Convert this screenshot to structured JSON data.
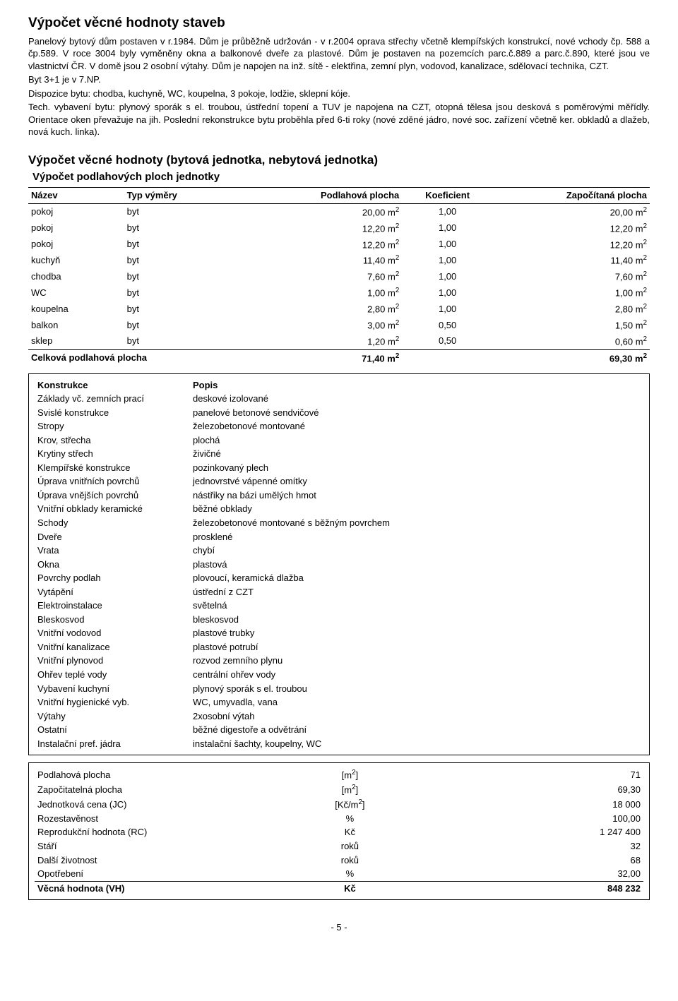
{
  "heading1": "Výpočet věcné hodnoty staveb",
  "para1": "Panelový bytový dům postaven v r.1984. Dům je průběžně udržován - v r.2004 oprava střechy včetně klempířských konstrukcí, nové vchody čp. 588 a čp.589. V roce 3004 byly vyměněny okna a balkonové dveře za plastové. Dům je postaven na pozemcích parc.č.889 a parc.č.890, které jsou ve vlastnictví ČR. V domě jsou 2 osobní výtahy. Dům je napojen na inž. sítě - elektřina, zemní plyn, vodovod, kanalizace, sdělovací technika, CZT.",
  "para2": "Byt 3+1 je v 7.NP.",
  "para3": "Dispozice bytu: chodba, kuchyně, WC, koupelna, 3 pokoje, lodžie, sklepní kóje.",
  "para4": "Tech. vybavení bytu: plynový sporák s el. troubou, ústřední topení a TUV je napojena na CZT, otopná tělesa jsou desková s poměrovými měřídly. Orientace oken převažuje na jih. Poslední rekonstrukce bytu proběhla před 6-ti roky (nové zděné jádro, nové soc. zařízení včetně ker. obkladů a dlažeb, nová kuch. linka).",
  "heading2": "Výpočet věcné hodnoty (bytová jednotka, nebytová jednotka)",
  "heading3": "Výpočet podlahových ploch jednotky",
  "areaTable": {
    "headers": [
      "Název",
      "Typ výměry",
      "Podlahová plocha",
      "Koeficient",
      "Započítaná plocha"
    ],
    "rows": [
      {
        "name": "pokoj",
        "type": "byt",
        "area": "20,00 m",
        "coef": "1,00",
        "calc": "20,00 m"
      },
      {
        "name": "pokoj",
        "type": "byt",
        "area": "12,20 m",
        "coef": "1,00",
        "calc": "12,20 m"
      },
      {
        "name": "pokoj",
        "type": "byt",
        "area": "12,20 m",
        "coef": "1,00",
        "calc": "12,20 m"
      },
      {
        "name": "kuchyň",
        "type": "byt",
        "area": "11,40 m",
        "coef": "1,00",
        "calc": "11,40 m"
      },
      {
        "name": "chodba",
        "type": "byt",
        "area": "7,60 m",
        "coef": "1,00",
        "calc": "7,60 m"
      },
      {
        "name": "WC",
        "type": "byt",
        "area": "1,00 m",
        "coef": "1,00",
        "calc": "1,00 m"
      },
      {
        "name": "koupelna",
        "type": "byt",
        "area": "2,80 m",
        "coef": "1,00",
        "calc": "2,80 m"
      },
      {
        "name": "balkon",
        "type": "byt",
        "area": "3,00 m",
        "coef": "0,50",
        "calc": "1,50 m"
      },
      {
        "name": "sklep",
        "type": "byt",
        "area": "1,20 m",
        "coef": "0,50",
        "calc": "0,60 m"
      }
    ],
    "totalLabel": "Celková podlahová plocha",
    "totalArea": "71,40 m",
    "totalCalc": "69,30 m"
  },
  "constrHeaders": [
    "Konstrukce",
    "Popis"
  ],
  "constr": [
    {
      "k": "Základy vč. zemních prací",
      "v": "deskové izolované"
    },
    {
      "k": "Svislé konstrukce",
      "v": "panelové betonové sendvičové"
    },
    {
      "k": "Stropy",
      "v": "železobetonové montované"
    },
    {
      "k": "Krov, střecha",
      "v": "plochá"
    },
    {
      "k": "Krytiny střech",
      "v": "živičné"
    },
    {
      "k": "Klempířské konstrukce",
      "v": "pozinkovaný plech"
    },
    {
      "k": "Úprava vnitřních povrchů",
      "v": "jednovrstvé vápenné omítky"
    },
    {
      "k": "Úprava vnějších povrchů",
      "v": "nástřiky na bázi umělých hmot"
    },
    {
      "k": "Vnitřní obklady keramické",
      "v": "běžné obklady"
    },
    {
      "k": "Schody",
      "v": "železobetonové montované s běžným povrchem"
    },
    {
      "k": "Dveře",
      "v": "prosklené"
    },
    {
      "k": "Vrata",
      "v": "chybí"
    },
    {
      "k": "Okna",
      "v": "plastová"
    },
    {
      "k": "Povrchy podlah",
      "v": "plovoucí, keramická dlažba"
    },
    {
      "k": "Vytápění",
      "v": "ústřední z CZT"
    },
    {
      "k": "Elektroinstalace",
      "v": "světelná"
    },
    {
      "k": "Bleskosvod",
      "v": "bleskosvod"
    },
    {
      "k": "Vnitřní vodovod",
      "v": "plastové trubky"
    },
    {
      "k": "Vnitřní kanalizace",
      "v": "plastové potrubí"
    },
    {
      "k": "Vnitřní plynovod",
      "v": "rozvod zemního plynu"
    },
    {
      "k": "Ohřev teplé vody",
      "v": "centrální ohřev vody"
    },
    {
      "k": "Vybavení kuchyní",
      "v": "plynový sporák s el. troubou"
    },
    {
      "k": "Vnitřní hygienické vyb.",
      "v": "WC, umyvadla, vana"
    },
    {
      "k": "Výtahy",
      "v": "2xosobní výtah"
    },
    {
      "k": "Ostatní",
      "v": "běžné digestoře a odvětrání"
    },
    {
      "k": "Instalační pref. jádra",
      "v": "instalační šachty, koupelny, WC"
    }
  ],
  "calc": [
    {
      "k": "Podlahová plocha",
      "u": "[m2]",
      "v": "71"
    },
    {
      "k": "Započitatelná plocha",
      "u": "[m2]",
      "v": "69,30"
    },
    {
      "k": "Jednotková cena (JC)",
      "u": "[Kč/m2]",
      "v": "18 000"
    },
    {
      "k": "Rozestavěnost",
      "u": "%",
      "v": "100,00"
    },
    {
      "k": "Reprodukční hodnota (RC)",
      "u": "Kč",
      "v": "1 247 400"
    },
    {
      "k": "Stáří",
      "u": "roků",
      "v": "32"
    },
    {
      "k": "Další životnost",
      "u": "roků",
      "v": "68"
    },
    {
      "k": "Opotřebení",
      "u": "%",
      "v": "32,00"
    }
  ],
  "calcFinal": {
    "k": "Věcná hodnota (VH)",
    "u": "Kč",
    "v": "848 232"
  },
  "pageNum": "- 5 -"
}
